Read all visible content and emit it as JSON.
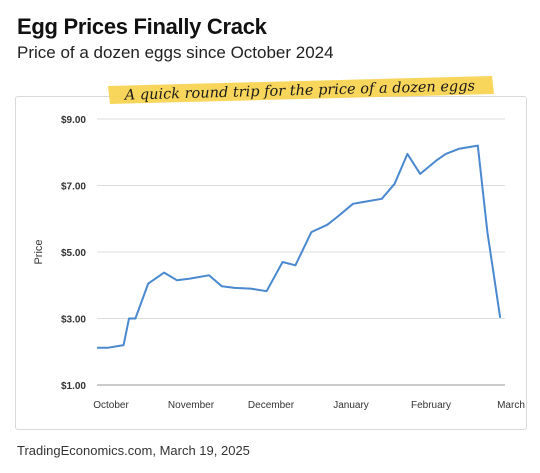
{
  "header": {
    "title": "Egg Prices Finally Crack",
    "subtitle": "Price of a dozen eggs since October 2024"
  },
  "annotation": "A quick round trip for the price of a dozen eggs",
  "footer": {
    "source": "TradingEconomics.com, March 19, 2025"
  },
  "colors": {
    "line": "#4a89cf",
    "highlight": "#f7d24a",
    "grid": "#dddddd",
    "axis": "#333333"
  },
  "chart_data": {
    "type": "line",
    "title": "Egg Prices Finally Crack",
    "subtitle": "Price of a dozen eggs since October 2024",
    "xlabel": "",
    "ylabel": "Price",
    "ylim": [
      1.0,
      9.0
    ],
    "y_ticks": [
      "$1.00",
      "$3.00",
      "$5.00",
      "$7.00",
      "$9.00"
    ],
    "y_tick_values": [
      1.0,
      3.0,
      5.0,
      7.0,
      9.0
    ],
    "x_ticks": [
      "October",
      "November",
      "December",
      "January",
      "February",
      "March"
    ],
    "x_tick_values": [
      0,
      2.5,
      5,
      7.5,
      10,
      12.5
    ],
    "grid": true,
    "x": [
      0,
      0.33,
      0.83,
      1.0,
      1.2,
      1.6,
      2.1,
      2.5,
      2.9,
      3.5,
      3.9,
      4.3,
      4.8,
      5.3,
      5.8,
      6.2,
      6.7,
      7.2,
      7.5,
      8.0,
      8.3,
      8.9,
      9.3,
      9.7,
      10.1,
      10.6,
      10.9,
      11.3,
      11.9,
      12.2,
      12.6
    ],
    "series": [
      {
        "values": [
          2.12,
          2.12,
          2.2,
          3.0,
          3.0,
          4.05,
          4.38,
          4.15,
          4.2,
          4.3,
          3.97,
          3.92,
          3.9,
          3.82,
          4.7,
          4.6,
          5.6,
          5.82,
          6.05,
          6.45,
          6.5,
          6.6,
          7.05,
          7.95,
          7.35,
          7.75,
          7.95,
          8.1,
          8.2,
          5.6,
          3.02
        ]
      }
    ]
  }
}
